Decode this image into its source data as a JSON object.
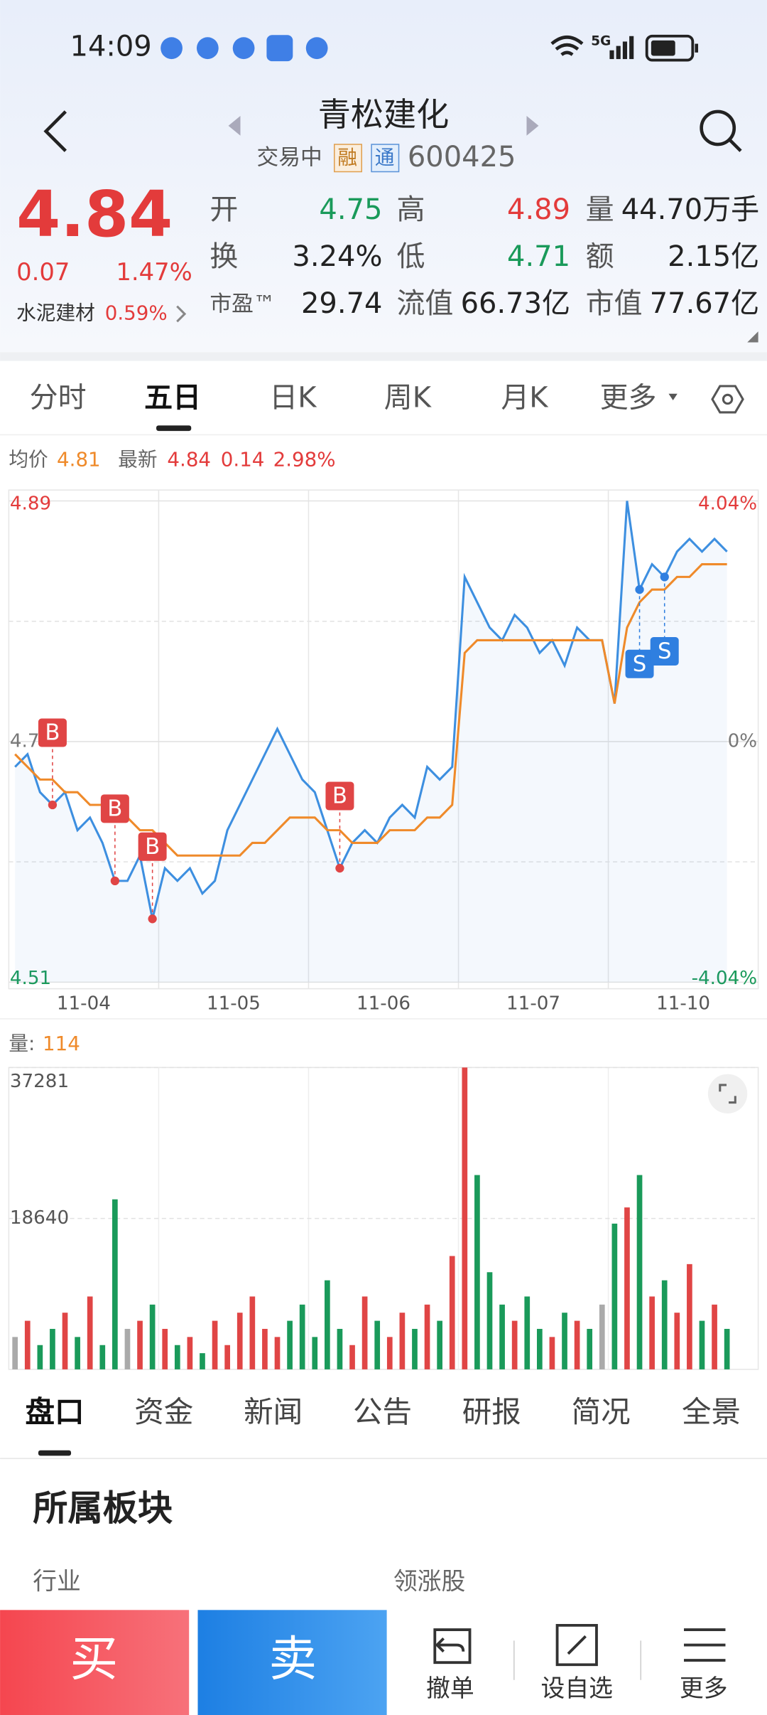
{
  "status": {
    "time": "14:09",
    "network": "5G"
  },
  "header": {
    "title": "青松建化",
    "state": "交易中",
    "tags": [
      "融",
      "通"
    ],
    "code": "600425"
  },
  "quote": {
    "price": "4.84",
    "change": "0.07",
    "pct": "1.47%",
    "sector": "水泥建材",
    "sector_pct": "0.59%",
    "fields": [
      {
        "label": "开",
        "value": "4.75",
        "color": "#1a9a5a"
      },
      {
        "label": "高",
        "value": "4.89",
        "color": "#e33b3b"
      },
      {
        "label": "量",
        "value": "44.70万手",
        "color": "#222222"
      },
      {
        "label": "换",
        "value": "3.24%",
        "color": "#222222"
      },
      {
        "label": "低",
        "value": "4.71",
        "color": "#1a9a5a"
      },
      {
        "label": "额",
        "value": "2.15亿",
        "color": "#222222"
      },
      {
        "label": "市盈™",
        "value": "29.74",
        "color": "#222222"
      },
      {
        "label": "流值",
        "value": "66.73亿",
        "color": "#222222"
      },
      {
        "label": "市值",
        "value": "77.67亿",
        "color": "#222222"
      }
    ]
  },
  "tabs": [
    "分时",
    "五日",
    "日K",
    "周K",
    "月K",
    "更多"
  ],
  "legend": {
    "avg_label": "均价",
    "avg": "4.81",
    "latest_label": "最新",
    "latest": "4.84",
    "change": "0.14",
    "pct": "2.98%"
  },
  "price_chart": {
    "ylim": [
      4.51,
      4.89
    ],
    "yticks": [
      4.89,
      4.7,
      4.51
    ],
    "right_labels": [
      "4.04%",
      "0%",
      "-4.04%"
    ],
    "dates": [
      "11-04",
      "11-05",
      "11-06",
      "11-07",
      "11-10"
    ],
    "price": [
      4.68,
      4.69,
      4.66,
      4.65,
      4.66,
      4.63,
      4.64,
      4.62,
      4.59,
      4.59,
      4.61,
      4.56,
      4.6,
      4.59,
      4.6,
      4.58,
      4.59,
      4.63,
      4.65,
      4.67,
      4.69,
      4.71,
      4.69,
      4.67,
      4.66,
      4.63,
      4.6,
      4.62,
      4.63,
      4.62,
      4.64,
      4.65,
      4.64,
      4.68,
      4.67,
      4.68,
      4.83,
      4.81,
      4.79,
      4.78,
      4.8,
      4.79,
      4.77,
      4.78,
      4.76,
      4.79,
      4.78,
      4.78,
      4.73,
      4.89,
      4.82,
      4.84,
      4.83,
      4.85,
      4.86,
      4.85,
      4.86,
      4.85
    ],
    "avg": [
      4.69,
      4.68,
      4.67,
      4.67,
      4.66,
      4.66,
      4.65,
      4.65,
      4.64,
      4.64,
      4.63,
      4.63,
      4.62,
      4.61,
      4.61,
      4.61,
      4.61,
      4.61,
      4.61,
      4.62,
      4.62,
      4.63,
      4.64,
      4.64,
      4.64,
      4.63,
      4.63,
      4.62,
      4.62,
      4.62,
      4.63,
      4.63,
      4.63,
      4.64,
      4.64,
      4.65,
      4.77,
      4.78,
      4.78,
      4.78,
      4.78,
      4.78,
      4.78,
      4.78,
      4.78,
      4.78,
      4.78,
      4.78,
      4.73,
      4.79,
      4.81,
      4.82,
      4.82,
      4.83,
      4.83,
      4.84,
      4.84,
      4.84
    ],
    "price_color": "#3d8fe0",
    "avg_color": "#ef8a2a",
    "markers": [
      "B",
      "B",
      "B",
      "B",
      "S",
      "S"
    ]
  },
  "volume_chart": {
    "label": "量:",
    "value": "114",
    "ylim": [
      0,
      37281
    ],
    "yticks": [
      37281,
      18640
    ],
    "values": [
      4000,
      6000,
      3000,
      5000,
      7000,
      4000,
      9000,
      3000,
      21000,
      5000,
      6000,
      8000,
      5000,
      3000,
      4000,
      2000,
      6000,
      3000,
      7000,
      9000,
      5000,
      4000,
      6000,
      8000,
      4000,
      11000,
      5000,
      3000,
      9000,
      6000,
      4000,
      7000,
      5000,
      8000,
      6000,
      14000,
      37281,
      24000,
      12000,
      8000,
      6000,
      9000,
      5000,
      4000,
      7000,
      6000,
      5000,
      8000,
      18000,
      20000,
      24000,
      9000,
      11000,
      7000,
      13000,
      6000,
      8000,
      5000
    ]
  },
  "bottom_tabs": [
    "盘口",
    "资金",
    "新闻",
    "公告",
    "研报",
    "简况",
    "全景"
  ],
  "section": {
    "title": "所属板块",
    "industry": "行业",
    "leaders": "领涨股"
  },
  "actions": {
    "buy": "买",
    "sell": "卖",
    "cancel": "撤单",
    "watch": "设自选",
    "more": "更多"
  }
}
